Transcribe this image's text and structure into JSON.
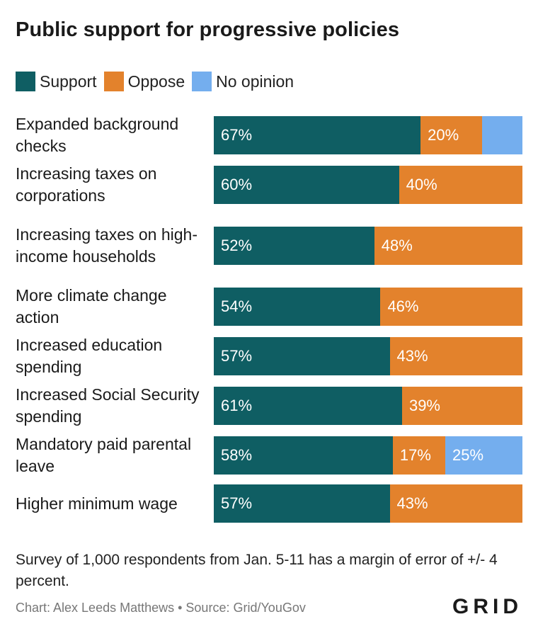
{
  "title": "Public support for progressive policies",
  "legend": [
    {
      "label": "Support",
      "color": "#0f5e63"
    },
    {
      "label": "Oppose",
      "color": "#e3822c"
    },
    {
      "label": "No opinion",
      "color": "#74aeee"
    }
  ],
  "chart_data": {
    "type": "bar",
    "orientation": "horizontal",
    "stacked": true,
    "title": "Public support for progressive policies",
    "categories": [
      "Expanded background checks",
      "Increasing taxes on corporations",
      "Increasing taxes on high-income households",
      "More climate change action",
      "Increased education spending",
      "Increased Social Security spending",
      "Mandatory paid parental leave",
      "Higher minimum wage"
    ],
    "series": [
      {
        "name": "Support",
        "values": [
          67,
          60,
          52,
          54,
          57,
          61,
          58,
          57
        ]
      },
      {
        "name": "Oppose",
        "values": [
          20,
          40,
          48,
          46,
          43,
          39,
          17,
          43
        ]
      },
      {
        "name": "No opinion",
        "values": [
          13,
          0,
          0,
          0,
          0,
          0,
          25,
          0
        ]
      }
    ],
    "data_labels": [
      [
        "67%",
        "20%",
        ""
      ],
      [
        "60%",
        "40%",
        ""
      ],
      [
        "52%",
        "48%",
        ""
      ],
      [
        "54%",
        "46%",
        ""
      ],
      [
        "57%",
        "43%",
        ""
      ],
      [
        "61%",
        "39%",
        ""
      ],
      [
        "58%",
        "17%",
        "25%"
      ],
      [
        "57%",
        "43%",
        ""
      ]
    ],
    "xlim": [
      0,
      100
    ],
    "legend_position": "top-left"
  },
  "note": "Survey of 1,000 respondents from Jan. 5-11 has a margin of error of +/- 4 percent.",
  "credit": "Chart: Alex Leeds Matthews • Source: Grid/YouGov",
  "logo": "GRID"
}
